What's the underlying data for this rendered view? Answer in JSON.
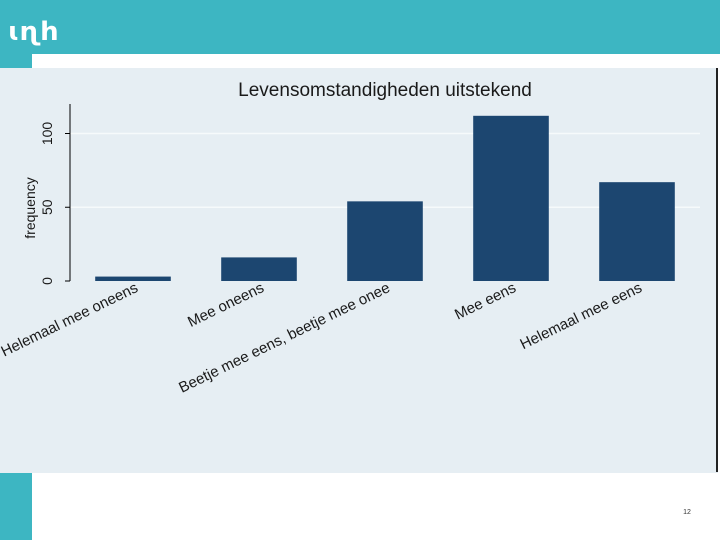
{
  "brand": {
    "logo_text": "ɩɳh",
    "color": "#3db6c2"
  },
  "page_number": "12",
  "chart_data": {
    "type": "bar",
    "title": "Levensomstandigheden uitstekend",
    "ylabel": "frequency",
    "xlabel": "",
    "categories": [
      "Helemaal mee oneens",
      "Mee oneens",
      "Beetje mee eens, beetje mee onee",
      "Mee eens",
      "Helemaal mee eens"
    ],
    "values": [
      3,
      16,
      54,
      112,
      67
    ],
    "ylim": [
      0,
      120
    ],
    "yticks": [
      0,
      50,
      100
    ],
    "grid": true,
    "legend": "none",
    "bar_color": "#1c4670",
    "grid_color": "#f6fafb",
    "axis_color": "#000000"
  }
}
